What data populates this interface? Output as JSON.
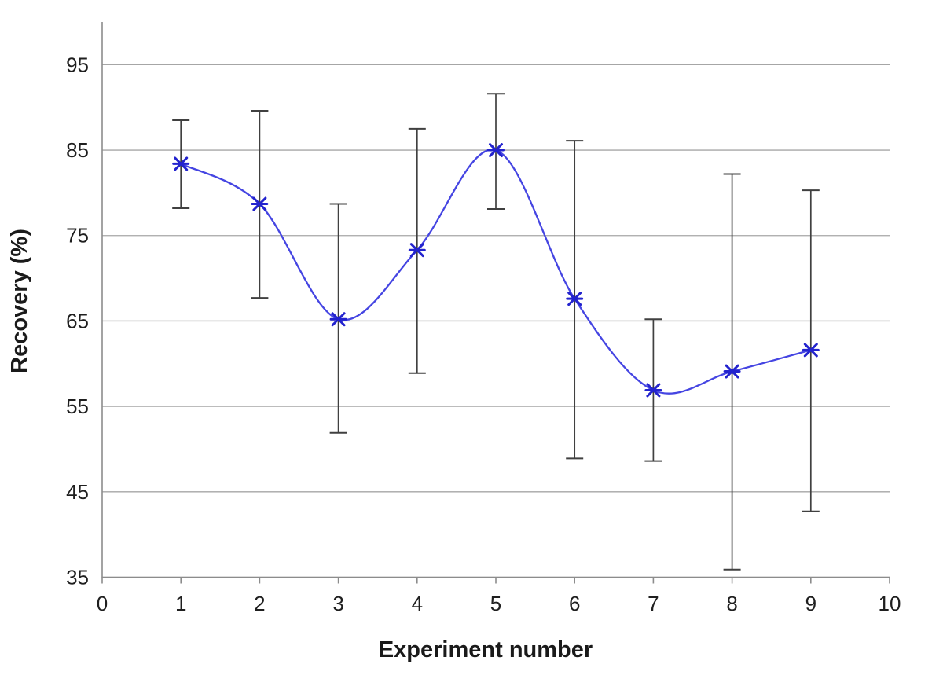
{
  "chart_data": {
    "type": "line",
    "title": "",
    "xlabel": "Experiment number",
    "ylabel": "Recovery (%)",
    "x": [
      1,
      2,
      3,
      4,
      5,
      6,
      7,
      8,
      9
    ],
    "series": [
      {
        "name": "Recovery",
        "values": [
          83.4,
          78.7,
          65.2,
          73.3,
          85.0,
          67.6,
          56.9,
          59.1,
          61.6
        ],
        "error_high": [
          88.5,
          89.6,
          78.7,
          87.5,
          91.6,
          86.1,
          65.2,
          82.2,
          80.3
        ],
        "error_low": [
          78.2,
          67.7,
          51.9,
          58.9,
          78.1,
          48.9,
          48.6,
          35.9,
          42.7
        ]
      }
    ],
    "xlim": [
      0,
      10
    ],
    "ylim": [
      35,
      100
    ],
    "xticks": [
      "0",
      "1",
      "2",
      "3",
      "4",
      "5",
      "6",
      "7",
      "8",
      "9",
      "10"
    ],
    "yticks": [
      "35",
      "45",
      "55",
      "65",
      "75",
      "85",
      "95"
    ],
    "grid": "horizontal",
    "legend": "none",
    "line_style": "smooth",
    "marker": "star-x",
    "colors": {
      "line": "#4545E2",
      "marker": "#2323CE",
      "error_bar": "#404040",
      "gridline": "#A6A6A6",
      "axis": "#8C8C8C",
      "text": "#1F1F1F",
      "background": "#FFFFFF"
    }
  }
}
